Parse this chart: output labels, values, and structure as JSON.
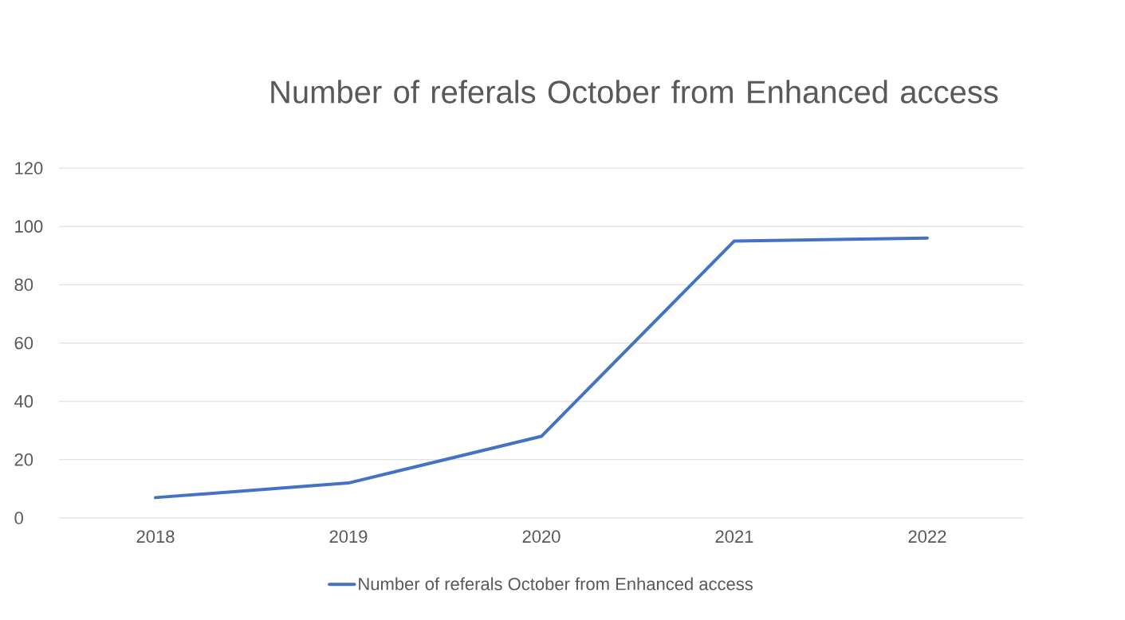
{
  "chart_data": {
    "type": "line",
    "title": "Number of referals October from Enhanced access",
    "categories": [
      "2018",
      "2019",
      "2020",
      "2021",
      "2022"
    ],
    "series": [
      {
        "name": "Number of referals October from Enhanced access",
        "color": "#4472c4",
        "values": [
          7,
          12,
          28,
          95,
          96
        ]
      }
    ],
    "ylim": [
      0,
      120
    ],
    "yticks": [
      0,
      20,
      40,
      60,
      80,
      100,
      120
    ],
    "grid": "y",
    "legend": "bottom",
    "marker": "none",
    "line_style": "solid"
  }
}
